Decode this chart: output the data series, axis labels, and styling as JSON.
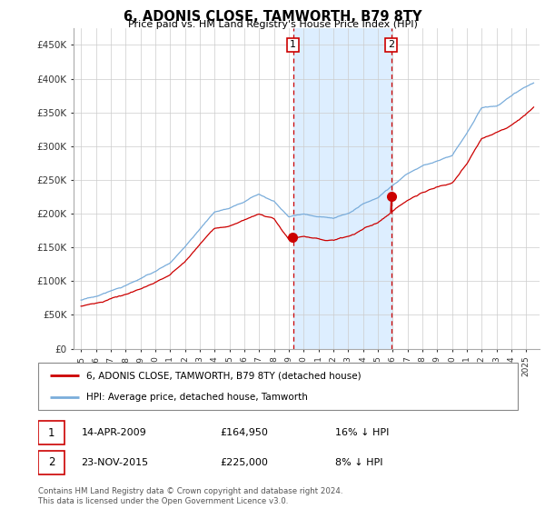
{
  "title": "6, ADONIS CLOSE, TAMWORTH, B79 8TY",
  "subtitle": "Price paid vs. HM Land Registry's House Price Index (HPI)",
  "ylim": [
    0,
    475000
  ],
  "marker1_year": 2009.29,
  "marker1_value": 164950,
  "marker2_year": 2015.9,
  "marker2_value": 225000,
  "marker1_date": "14-APR-2009",
  "marker1_price": "£164,950",
  "marker1_hpi": "16% ↓ HPI",
  "marker2_date": "23-NOV-2015",
  "marker2_price": "£225,000",
  "marker2_hpi": "8% ↓ HPI",
  "red_line_label": "6, ADONIS CLOSE, TAMWORTH, B79 8TY (detached house)",
  "blue_line_label": "HPI: Average price, detached house, Tamworth",
  "footer": "Contains HM Land Registry data © Crown copyright and database right 2024.\nThis data is licensed under the Open Government Licence v3.0.",
  "red_color": "#cc0000",
  "blue_color": "#7aaddb",
  "highlight_color": "#ddeeff",
  "dashed_color": "#cc0000",
  "grid_color": "#cccccc",
  "spine_color": "#aaaaaa"
}
